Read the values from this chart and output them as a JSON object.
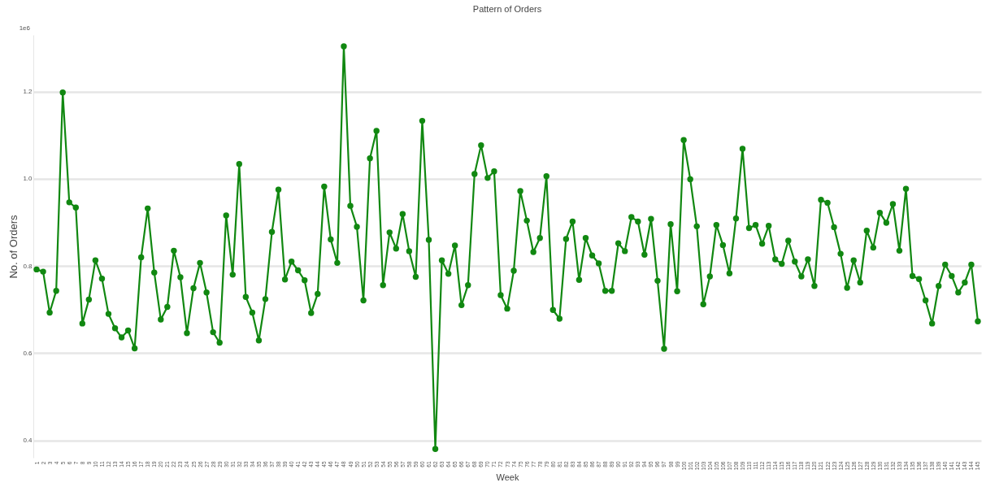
{
  "chart_data": {
    "type": "line",
    "title": "Pattern of Orders",
    "xlabel": "Week",
    "ylabel": "No. of Orders",
    "annotations": [
      "1e6"
    ],
    "categories": [
      "1",
      "2",
      "3",
      "4",
      "5",
      "6",
      "7",
      "8",
      "9",
      "10",
      "11",
      "12",
      "13",
      "14",
      "15",
      "16",
      "17",
      "18",
      "19",
      "20",
      "21",
      "22",
      "23",
      "24",
      "25",
      "26",
      "27",
      "28",
      "29",
      "30",
      "31",
      "32",
      "33",
      "34",
      "35",
      "36",
      "37",
      "38",
      "39",
      "40",
      "41",
      "42",
      "43",
      "44",
      "45",
      "46",
      "47",
      "48",
      "49",
      "50",
      "51",
      "52",
      "53",
      "54",
      "55",
      "56",
      "57",
      "58",
      "59",
      "60",
      "61",
      "62",
      "63",
      "64",
      "65",
      "66",
      "67",
      "68",
      "69",
      "70",
      "71",
      "72",
      "73",
      "74",
      "75",
      "76",
      "77",
      "78",
      "79",
      "80",
      "81",
      "82",
      "83",
      "84",
      "85",
      "86",
      "87",
      "88",
      "89",
      "90",
      "91",
      "92",
      "93",
      "94",
      "95",
      "96",
      "97",
      "98",
      "99",
      "100",
      "101",
      "102",
      "103",
      "104",
      "105",
      "106",
      "107",
      "108",
      "109",
      "110",
      "111",
      "112",
      "113",
      "114",
      "115",
      "116",
      "117",
      "118",
      "119",
      "120",
      "121",
      "122",
      "123",
      "124",
      "125",
      "126",
      "127",
      "128",
      "129",
      "130",
      "131",
      "132",
      "133",
      "134",
      "135",
      "136",
      "137",
      "138",
      "139",
      "140",
      "141",
      "142",
      "143",
      "144",
      "145"
    ],
    "series": [
      {
        "color": "#118811",
        "values": [
          0.792,
          0.787,
          0.693,
          0.743,
          1.198,
          0.946,
          0.934,
          0.668,
          0.723,
          0.813,
          0.771,
          0.69,
          0.657,
          0.636,
          0.652,
          0.611,
          0.82,
          0.932,
          0.785,
          0.677,
          0.706,
          0.835,
          0.774,
          0.646,
          0.749,
          0.807,
          0.739,
          0.648,
          0.624,
          0.916,
          0.78,
          1.034,
          0.729,
          0.693,
          0.629,
          0.724,
          0.878,
          0.975,
          0.769,
          0.81,
          0.79,
          0.767,
          0.692,
          0.736,
          0.982,
          0.861,
          0.807,
          1.304,
          0.938,
          0.89,
          0.721,
          1.047,
          1.11,
          0.756,
          0.877,
          0.84,
          0.919,
          0.834,
          0.775,
          1.133,
          0.86,
          0.38,
          0.813,
          0.782,
          0.847,
          0.71,
          0.756,
          1.011,
          1.077,
          1.002,
          1.017,
          0.733,
          0.702,
          0.789,
          0.972,
          0.904,
          0.832,
          0.864,
          1.006,
          0.699,
          0.679,
          0.862,
          0.902,
          0.768,
          0.864,
          0.824,
          0.806,
          0.743,
          0.743,
          0.852,
          0.834,
          0.912,
          0.902,
          0.826,
          0.908,
          0.766,
          0.61,
          0.896,
          0.742,
          1.089,
          0.999,
          0.891,
          0.712,
          0.776,
          0.894,
          0.848,
          0.783,
          0.909,
          1.069,
          0.887,
          0.894,
          0.851,
          0.892,
          0.815,
          0.805,
          0.858,
          0.81,
          0.776,
          0.815,
          0.754,
          0.952,
          0.945,
          0.889,
          0.828,
          0.75,
          0.813,
          0.762,
          0.881,
          0.842,
          0.922,
          0.899,
          0.942,
          0.835,
          0.977,
          0.777,
          0.77,
          0.721,
          0.668,
          0.754,
          0.803,
          0.777,
          0.739,
          0.762,
          0.803,
          0.673
        ]
      }
    ],
    "ylim": [
      0.36,
      1.33
    ],
    "yticks": [
      0.4,
      0.6,
      0.8,
      {
        "value": 1,
        "label": "1.0"
      },
      1.2
    ],
    "grid": "y",
    "marker": "circle",
    "line_style": "solid"
  }
}
